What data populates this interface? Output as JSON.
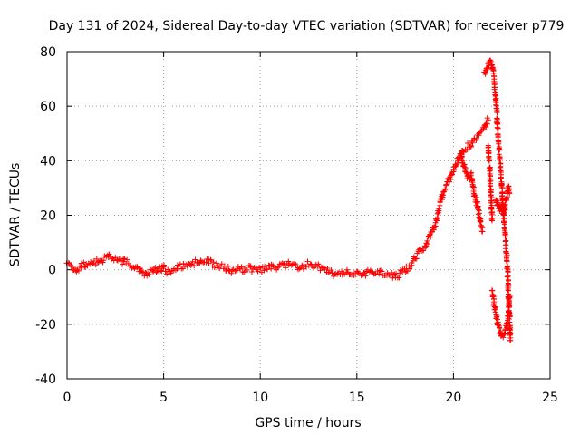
{
  "chart_data": {
    "type": "scatter",
    "title": "Day 131 of 2024, Sidereal Day-to-day VTEC variation (SDTVAR) for receiver p779",
    "xlabel": "GPS time / hours",
    "ylabel": "SDTVAR / TECUs",
    "xlim": [
      0,
      25
    ],
    "ylim": [
      -40,
      80
    ],
    "xticks": [
      0,
      5,
      10,
      15,
      20,
      25
    ],
    "yticks": [
      -40,
      -20,
      0,
      20,
      40,
      60,
      80
    ],
    "xtick_labels": [
      "0",
      "5",
      "10",
      "15",
      "20",
      "25"
    ],
    "ytick_labels": [
      "-40",
      "-20",
      "0",
      "20",
      "40",
      "60",
      "80"
    ],
    "grid": true,
    "marker": "+",
    "color": "#ff0000",
    "series": [
      {
        "name": "SDTVAR",
        "segments": [
          [
            [
              0.0,
              2
            ],
            [
              0.3,
              1
            ],
            [
              0.5,
              0
            ],
            [
              0.8,
              1.5
            ],
            [
              1.0,
              2
            ],
            [
              1.3,
              2.5
            ],
            [
              1.6,
              3
            ],
            [
              1.9,
              4
            ],
            [
              2.2,
              4.5
            ],
            [
              2.5,
              4
            ],
            [
              2.8,
              3
            ],
            [
              3.0,
              3
            ],
            [
              3.3,
              2
            ],
            [
              3.6,
              1
            ],
            [
              3.9,
              -1
            ],
            [
              4.1,
              -1.5
            ],
            [
              4.3,
              -1
            ],
            [
              4.5,
              0
            ],
            [
              4.7,
              -0.5
            ],
            [
              4.9,
              0.5
            ],
            [
              5.0,
              1
            ],
            [
              5.2,
              -1
            ],
            [
              5.5,
              0
            ],
            [
              5.8,
              1
            ],
            [
              6.1,
              1.5
            ],
            [
              6.4,
              2
            ],
            [
              6.7,
              3
            ],
            [
              7.0,
              3.5
            ],
            [
              7.3,
              3
            ],
            [
              7.6,
              2
            ],
            [
              7.9,
              1.5
            ],
            [
              8.2,
              0.5
            ],
            [
              8.5,
              -0.5
            ],
            [
              8.8,
              0
            ],
            [
              9.1,
              0
            ],
            [
              9.4,
              0.5
            ],
            [
              9.7,
              0
            ],
            [
              10.0,
              0
            ],
            [
              10.3,
              0.5
            ],
            [
              10.6,
              1
            ],
            [
              10.9,
              1
            ],
            [
              11.2,
              1.5
            ],
            [
              11.5,
              2
            ],
            [
              11.8,
              1.5
            ],
            [
              12.1,
              1
            ],
            [
              12.4,
              2
            ],
            [
              12.7,
              2
            ],
            [
              13.0,
              1
            ],
            [
              13.3,
              0
            ],
            [
              13.6,
              -1
            ],
            [
              13.9,
              -1.5
            ],
            [
              14.2,
              -1
            ],
            [
              14.5,
              -1
            ],
            [
              14.8,
              -1
            ],
            [
              15.1,
              -1.5
            ],
            [
              15.4,
              -1.5
            ],
            [
              15.7,
              -1
            ],
            [
              16.0,
              -1
            ],
            [
              16.3,
              -1
            ],
            [
              16.6,
              -1.5
            ],
            [
              16.9,
              -2
            ],
            [
              17.1,
              -2.5
            ],
            [
              17.3,
              -1
            ],
            [
              17.5,
              0
            ],
            [
              17.7,
              1
            ],
            [
              17.9,
              3
            ],
            [
              18.1,
              5
            ],
            [
              18.3,
              7
            ],
            [
              18.5,
              8
            ],
            [
              18.7,
              11
            ],
            [
              18.9,
              14
            ],
            [
              19.1,
              18
            ],
            [
              19.3,
              24
            ],
            [
              19.5,
              29
            ],
            [
              19.7,
              32
            ],
            [
              19.9,
              35
            ],
            [
              20.1,
              38
            ],
            [
              20.3,
              41
            ],
            [
              20.5,
              44
            ],
            [
              20.7,
              45
            ],
            [
              20.9,
              46
            ],
            [
              21.0,
              47
            ],
            [
              21.2,
              48
            ],
            [
              21.4,
              50
            ],
            [
              21.6,
              52
            ],
            [
              21.8,
              55
            ]
          ],
          [
            [
              21.6,
              72
            ],
            [
              21.7,
              74
            ],
            [
              21.8,
              76
            ],
            [
              21.9,
              76
            ],
            [
              22.0,
              75
            ],
            [
              22.1,
              70
            ],
            [
              22.2,
              62
            ],
            [
              22.3,
              50
            ],
            [
              22.4,
              40
            ],
            [
              22.5,
              30
            ],
            [
              22.6,
              20
            ],
            [
              22.7,
              10
            ],
            [
              22.8,
              0
            ],
            [
              22.85,
              -10
            ],
            [
              22.9,
              -18
            ],
            [
              22.95,
              -26
            ]
          ],
          [
            [
              22.0,
              -8
            ],
            [
              22.1,
              -12
            ],
            [
              22.2,
              -16
            ],
            [
              22.3,
              -20
            ],
            [
              22.4,
              -23
            ],
            [
              22.5,
              -25
            ],
            [
              22.6,
              -24
            ],
            [
              22.7,
              -22
            ],
            [
              22.8,
              -18
            ],
            [
              22.85,
              -14
            ],
            [
              22.9,
              -10
            ]
          ],
          [
            [
              22.2,
              26
            ],
            [
              22.3,
              23
            ],
            [
              22.4,
              22
            ],
            [
              22.5,
              24
            ],
            [
              22.6,
              20
            ],
            [
              22.7,
              24
            ],
            [
              22.8,
              28
            ],
            [
              22.85,
              30
            ],
            [
              22.9,
              28
            ]
          ],
          [
            [
              20.4,
              42
            ],
            [
              20.5,
              39
            ],
            [
              20.6,
              37
            ],
            [
              20.7,
              35
            ],
            [
              20.8,
              33
            ],
            [
              20.9,
              35
            ],
            [
              21.0,
              31
            ],
            [
              21.1,
              27
            ],
            [
              21.2,
              25
            ],
            [
              21.3,
              21
            ],
            [
              21.4,
              17
            ],
            [
              21.5,
              14
            ]
          ],
          [
            [
              21.8,
              46
            ],
            [
              21.85,
              40
            ],
            [
              21.9,
              34
            ],
            [
              21.95,
              26
            ],
            [
              22.0,
              18
            ]
          ]
        ]
      }
    ]
  }
}
